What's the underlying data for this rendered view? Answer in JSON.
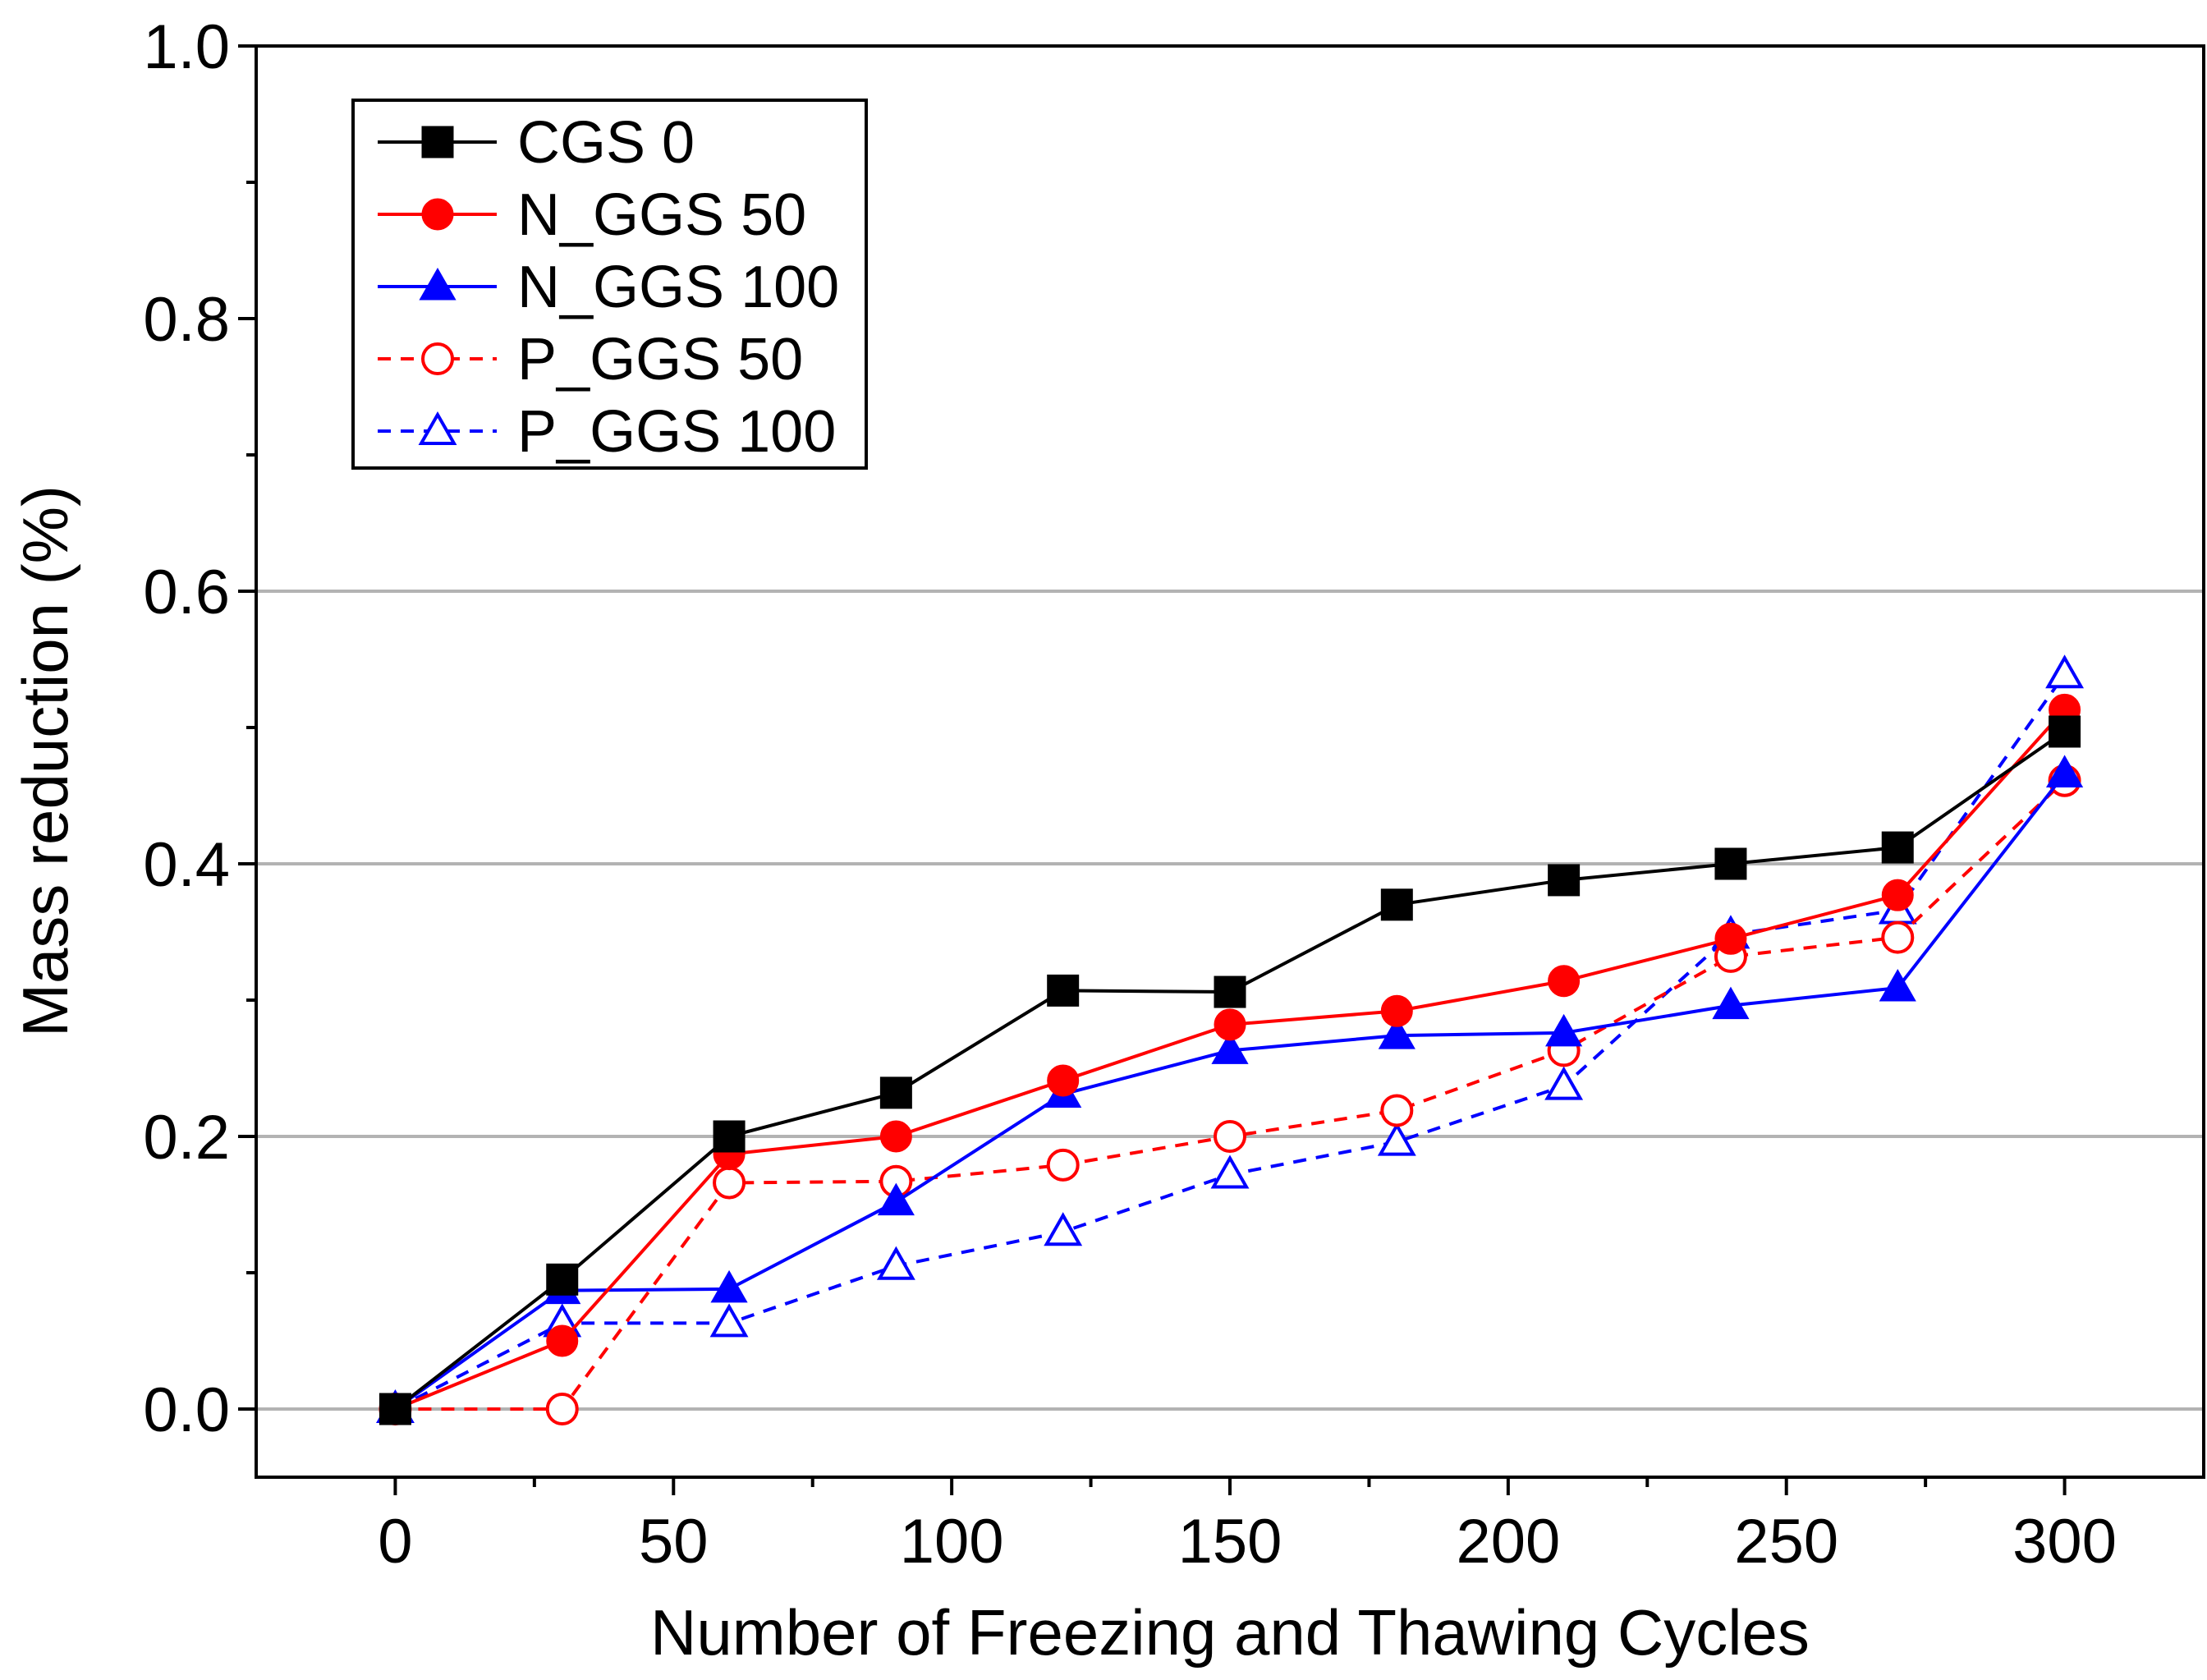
{
  "chart_data": {
    "type": "line",
    "title": "",
    "xlabel": "Number of Freezing and Thawing Cycles",
    "ylabel": "Mass reduction (%)",
    "xlim": [
      -25,
      325
    ],
    "ylim": [
      -0.05,
      1.0
    ],
    "xticks": [
      0,
      50,
      100,
      150,
      200,
      250,
      300
    ],
    "xtick_labels": [
      "0",
      "50",
      "100",
      "150",
      "200",
      "250",
      "300"
    ],
    "yticks": [
      0.0,
      0.2,
      0.4,
      0.6,
      0.8,
      1.0
    ],
    "ytick_labels": [
      "0.0",
      "0.2",
      "0.4",
      "0.6",
      "0.8",
      "1.0"
    ],
    "grid": "horizontal at 0.0, 0.2, 0.4, 0.6",
    "legend_position": "top-left",
    "x": [
      0,
      30,
      60,
      90,
      120,
      150,
      180,
      210,
      240,
      270,
      300
    ],
    "series": [
      {
        "name": "CGS 0",
        "color": "#000000",
        "marker": "square",
        "filled": true,
        "dashed": false,
        "values": [
          0.0,
          0.095,
          0.2,
          0.232,
          0.307,
          0.306,
          0.37,
          0.388,
          0.4,
          0.412,
          0.497
        ]
      },
      {
        "name": "N_GGS 50",
        "color": "#ff0000",
        "marker": "circle",
        "filled": true,
        "dashed": false,
        "values": [
          0.0,
          0.05,
          0.187,
          0.2,
          0.241,
          0.282,
          0.292,
          0.314,
          0.345,
          0.377,
          0.513
        ]
      },
      {
        "name": "N_GGS 100",
        "color": "#0000ff",
        "marker": "triangle",
        "filled": true,
        "dashed": false,
        "values": [
          0.0,
          0.087,
          0.088,
          0.152,
          0.231,
          0.263,
          0.274,
          0.276,
          0.296,
          0.309,
          0.466
        ]
      },
      {
        "name": "P_GGS 50",
        "color": "#ff0000",
        "marker": "circle",
        "filled": false,
        "dashed": true,
        "values": [
          0.0,
          0.0,
          0.166,
          0.167,
          0.179,
          0.2,
          0.219,
          0.263,
          0.332,
          0.346,
          0.461
        ]
      },
      {
        "name": "P_GGS 100",
        "color": "#0000ff",
        "marker": "triangle",
        "filled": false,
        "dashed": true,
        "values": [
          0.0,
          0.063,
          0.063,
          0.105,
          0.13,
          0.172,
          0.196,
          0.237,
          0.348,
          0.366,
          0.539
        ]
      }
    ]
  }
}
